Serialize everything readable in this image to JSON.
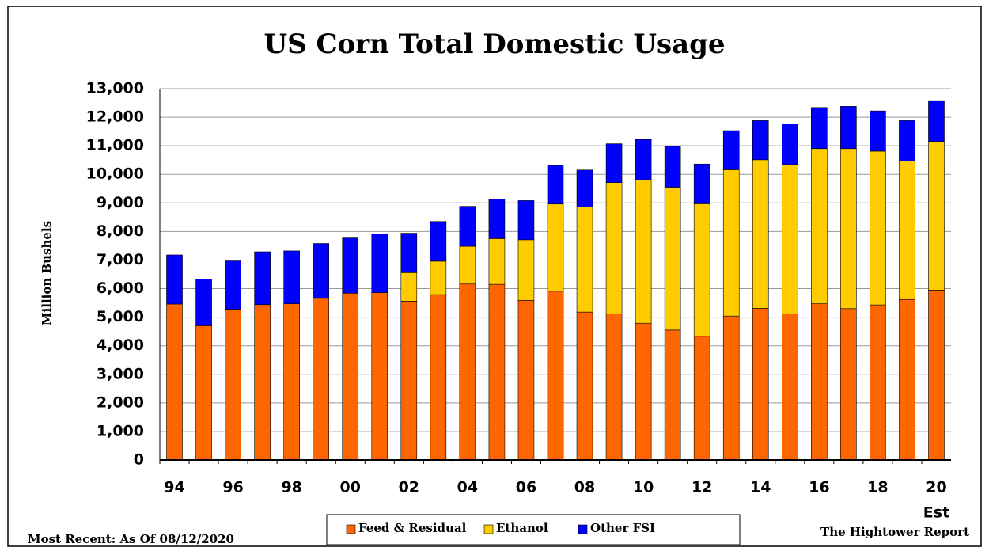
{
  "chart_data": {
    "type": "stacked_bar",
    "title": "US Corn Total Domestic Usage",
    "y_label": "Million Bushels",
    "categories": [
      "94",
      null,
      "96",
      null,
      "98",
      null,
      "00",
      null,
      "02",
      null,
      "04",
      null,
      "06",
      null,
      "08",
      null,
      "10",
      null,
      "12",
      null,
      "14",
      null,
      "16",
      null,
      "18",
      null,
      "20"
    ],
    "category_note": "Est",
    "series": [
      {
        "name": "Feed & Residual",
        "color": "#ff6600",
        "values": [
          5460,
          4700,
          5280,
          5440,
          5470,
          5660,
          5840,
          5860,
          5560,
          5790,
          6160,
          6150,
          5590,
          5910,
          5180,
          5120,
          4790,
          4550,
          4330,
          5040,
          5310,
          5120,
          5470,
          5300,
          5430,
          5620,
          5950
        ]
      },
      {
        "name": "Ethanol",
        "color": "#ffcc00",
        "values": [
          null,
          null,
          null,
          null,
          null,
          null,
          null,
          null,
          1000,
          1170,
          1320,
          1600,
          2120,
          3050,
          3680,
          4590,
          5020,
          5000,
          4640,
          5120,
          5200,
          5220,
          5430,
          5600,
          5380,
          4850,
          5200
        ]
      },
      {
        "name": "Other FSI",
        "color": "#0000ff",
        "values": [
          1720,
          1630,
          1690,
          1850,
          1850,
          1920,
          1960,
          2060,
          1380,
          1390,
          1400,
          1380,
          1370,
          1350,
          1290,
          1360,
          1410,
          1430,
          1390,
          1370,
          1370,
          1430,
          1440,
          1480,
          1410,
          1410,
          1430
        ]
      }
    ],
    "ylim": [
      0,
      13000
    ],
    "yticks": [
      0,
      {
        "value": 1000,
        "label": "1,000"
      },
      {
        "value": 2000,
        "label": "2,000"
      },
      {
        "value": 3000,
        "label": "3,000"
      },
      {
        "value": 4000,
        "label": "4,000"
      },
      {
        "value": 5000,
        "label": "5,000"
      },
      {
        "value": 6000,
        "label": "6,000"
      },
      {
        "value": 7000,
        "label": "7,000"
      },
      {
        "value": 8000,
        "label": "8,000"
      },
      {
        "value": 9000,
        "label": "9,000"
      },
      {
        "value": 10000,
        "label": "10,000"
      },
      {
        "value": 11000,
        "label": "11,000"
      },
      {
        "value": 12000,
        "label": "12,000"
      },
      {
        "value": 13000,
        "label": "13,000"
      }
    ],
    "grid": true,
    "date_note": "Most Recent: As Of 08/12/2020",
    "source_note": "The Hightower Report"
  }
}
